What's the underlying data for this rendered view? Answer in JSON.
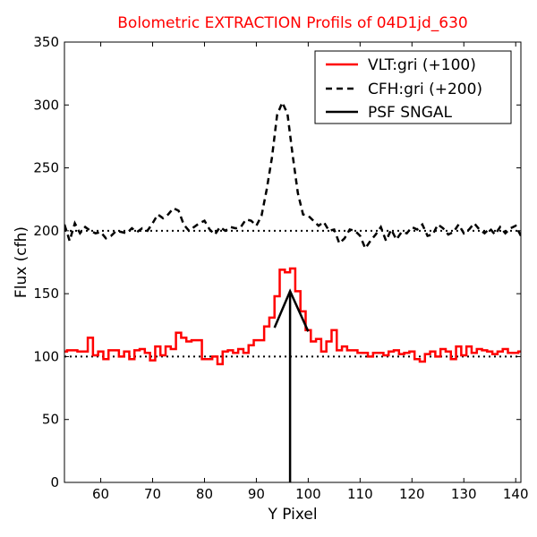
{
  "chart_data": {
    "type": "line",
    "title": "Bolometric EXTRACTION Profils of 04D1jd_630",
    "title_color": "#ff0000",
    "xlabel": "Y Pixel",
    "ylabel": "Flux (cfh)",
    "xlim": [
      53,
      141
    ],
    "ylim": [
      0,
      350
    ],
    "xticks": [
      60,
      70,
      80,
      90,
      100,
      110,
      120,
      130,
      140
    ],
    "yticks": [
      0,
      50,
      100,
      150,
      200,
      250,
      300,
      350
    ],
    "grid": false,
    "legend_position": "top-right",
    "reference_lines": [
      100,
      200
    ],
    "series": [
      {
        "name": "VLT:gri (+100)",
        "style": "steps",
        "color": "#ff0000",
        "x": [
          53,
          54,
          55,
          56,
          57,
          58,
          59,
          60,
          61,
          62,
          63,
          64,
          65,
          66,
          67,
          68,
          69,
          70,
          71,
          72,
          73,
          74,
          75,
          76,
          77,
          78,
          79,
          80,
          81,
          82,
          83,
          84,
          85,
          86,
          87,
          88,
          89,
          90,
          91,
          92,
          93,
          94,
          95,
          96,
          97,
          98,
          99,
          100,
          101,
          102,
          103,
          104,
          105,
          106,
          107,
          108,
          109,
          110,
          111,
          112,
          113,
          114,
          115,
          116,
          117,
          118,
          119,
          120,
          121,
          122,
          123,
          124,
          125,
          126,
          127,
          128,
          129,
          130,
          131,
          132,
          133,
          134,
          135,
          136,
          137,
          138,
          139,
          140,
          141
        ],
        "y": [
          104,
          105,
          105,
          104,
          104,
          115,
          101,
          104,
          98,
          105,
          105,
          100,
          104,
          98,
          105,
          106,
          103,
          97,
          108,
          101,
          108,
          106,
          119,
          115,
          112,
          113,
          113,
          98,
          98,
          100,
          94,
          104,
          105,
          103,
          106,
          103,
          109,
          113,
          113,
          124,
          131,
          148,
          169,
          167,
          170,
          152,
          136,
          121,
          112,
          114,
          104,
          112,
          121,
          105,
          108,
          105,
          105,
          103,
          103,
          100,
          103,
          103,
          101,
          104,
          105,
          102,
          103,
          104,
          98,
          96,
          102,
          104,
          100,
          106,
          104,
          98,
          108,
          101,
          108,
          103,
          106,
          105,
          104,
          102,
          104,
          106,
          103,
          103,
          104
        ]
      },
      {
        "name": "CFH:gri (+200)",
        "style": "dashed",
        "color": "#000000",
        "x": [
          53,
          54,
          55,
          56,
          57,
          58,
          59,
          60,
          61,
          62,
          63,
          64,
          65,
          66,
          67,
          68,
          69,
          70,
          71,
          72,
          73,
          74,
          75,
          76,
          77,
          78,
          79,
          80,
          81,
          82,
          83,
          84,
          85,
          86,
          87,
          88,
          89,
          90,
          91,
          92,
          93,
          94,
          95,
          96,
          97,
          98,
          99,
          100,
          101,
          102,
          103,
          104,
          105,
          106,
          107,
          108,
          109,
          110,
          111,
          112,
          113,
          114,
          115,
          116,
          117,
          118,
          119,
          120,
          121,
          122,
          123,
          124,
          125,
          126,
          127,
          128,
          129,
          130,
          131,
          132,
          133,
          134,
          135,
          136,
          137,
          138,
          139,
          140,
          141
        ],
        "y": [
          205,
          192,
          206,
          198,
          203,
          200,
          198,
          199,
          194,
          196,
          200,
          199,
          198,
          202,
          199,
          202,
          200,
          206,
          213,
          210,
          213,
          218,
          216,
          205,
          200,
          203,
          206,
          208,
          201,
          197,
          203,
          200,
          203,
          202,
          203,
          209,
          208,
          204,
          212,
          233,
          258,
          292,
          302,
          293,
          260,
          230,
          213,
          212,
          208,
          204,
          207,
          200,
          201,
          190,
          194,
          201,
          200,
          196,
          186,
          192,
          197,
          203,
          192,
          201,
          193,
          199,
          198,
          203,
          201,
          205,
          196,
          197,
          205,
          202,
          197,
          199,
          205,
          198,
          201,
          206,
          201,
          198,
          202,
          197,
          203,
          198,
          202,
          204,
          196
        ]
      },
      {
        "name": "PSF SNGAL",
        "style": "solid",
        "color": "#000000",
        "x": [
          93.5,
          96.5,
          100
        ],
        "y": [
          123,
          152,
          120
        ],
        "vertical_marker": {
          "x": 96.5,
          "y_from": 0,
          "y_to": 152
        }
      }
    ]
  }
}
